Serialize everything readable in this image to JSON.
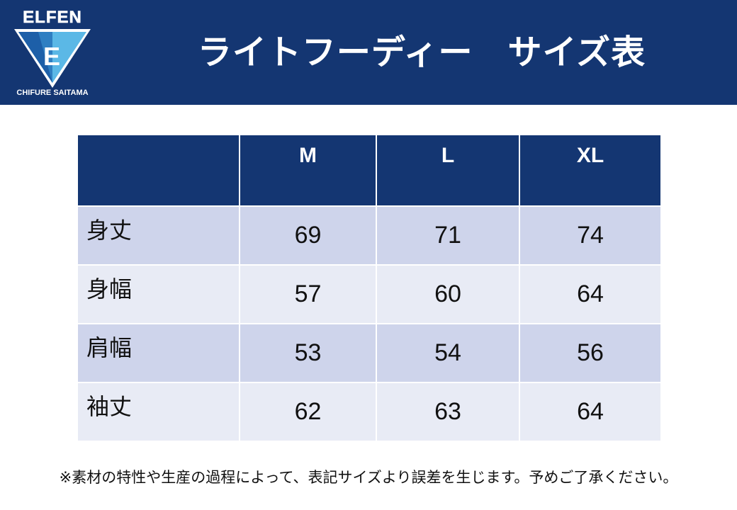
{
  "logo": {
    "top_text": "ELFEN",
    "letter": "E",
    "bottom_text": "CHIFURE SAITAMA"
  },
  "header": {
    "title": "ライトフーディー　サイズ表"
  },
  "table": {
    "corner": "",
    "columns": [
      "M",
      "L",
      "XL"
    ],
    "rows": [
      {
        "label": "身丈",
        "values": [
          "69",
          "71",
          "74"
        ]
      },
      {
        "label": "身幅",
        "values": [
          "57",
          "60",
          "64"
        ]
      },
      {
        "label": "肩幅",
        "values": [
          "53",
          "54",
          "56"
        ]
      },
      {
        "label": "袖丈",
        "values": [
          "62",
          "63",
          "64"
        ]
      }
    ]
  },
  "note": "※素材の特性や生産の過程によって、表記サイズより誤差を生じます。予めご了承ください。",
  "colors": {
    "header_bg": "#143672",
    "row_odd": "#ced4eb",
    "row_even": "#e8ebf5",
    "logo_light": "#5bb8e6"
  }
}
